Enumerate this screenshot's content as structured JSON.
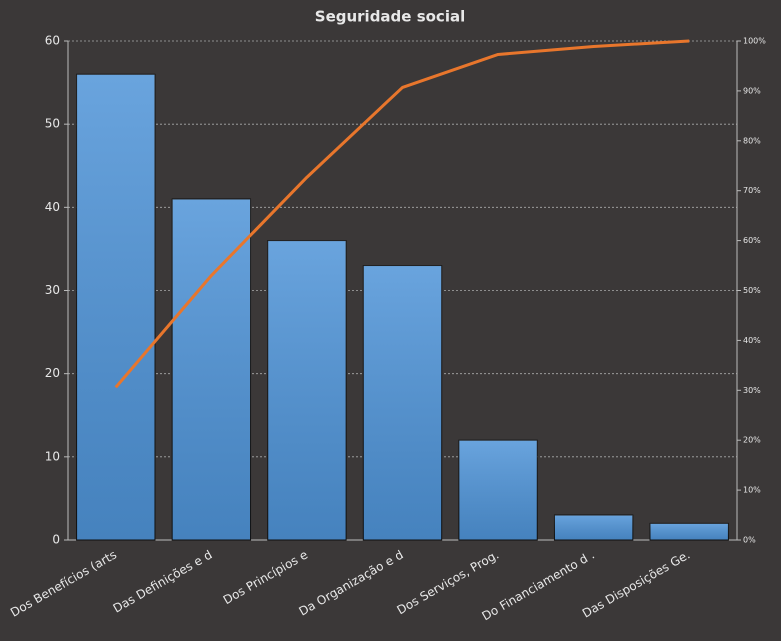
{
  "chart_data": {
    "type": "bar",
    "title": "Seguridade social",
    "categories": [
      "Dos Benefícios (arts",
      "Das Definições e d",
      "Dos Princípios e",
      "Da Organização e d",
      "Dos Serviços, Prog.",
      "Do Financiamento d .",
      "Das Disposições Ge."
    ],
    "series": [
      {
        "type": "bar",
        "color": "#4f94d8",
        "values": [
          56,
          41,
          36,
          33,
          12,
          3,
          2
        ]
      },
      {
        "type": "line",
        "axis": "y2",
        "color": "#e8762c",
        "values": [
          30.6,
          53.0,
          72.7,
          90.7,
          97.3,
          98.9,
          100
        ]
      }
    ],
    "ylim": [
      0,
      60
    ],
    "yticks": [
      0,
      10,
      20,
      30,
      40,
      50,
      60
    ],
    "y2lim": [
      0,
      100
    ],
    "y2ticks": [
      {
        "value": 0,
        "label": "0%"
      },
      {
        "value": 10,
        "label": "10%"
      },
      {
        "value": 20,
        "label": "20%"
      },
      {
        "value": 30,
        "label": "30%"
      },
      {
        "value": 40,
        "label": "40%"
      },
      {
        "value": 50,
        "label": "50%"
      },
      {
        "value": 60,
        "label": "60%"
      },
      {
        "value": 70,
        "label": "70%"
      },
      {
        "value": 80,
        "label": "80%"
      },
      {
        "value": 90,
        "label": "90%"
      },
      {
        "value": 100,
        "label": "100%"
      }
    ],
    "grid": true
  }
}
